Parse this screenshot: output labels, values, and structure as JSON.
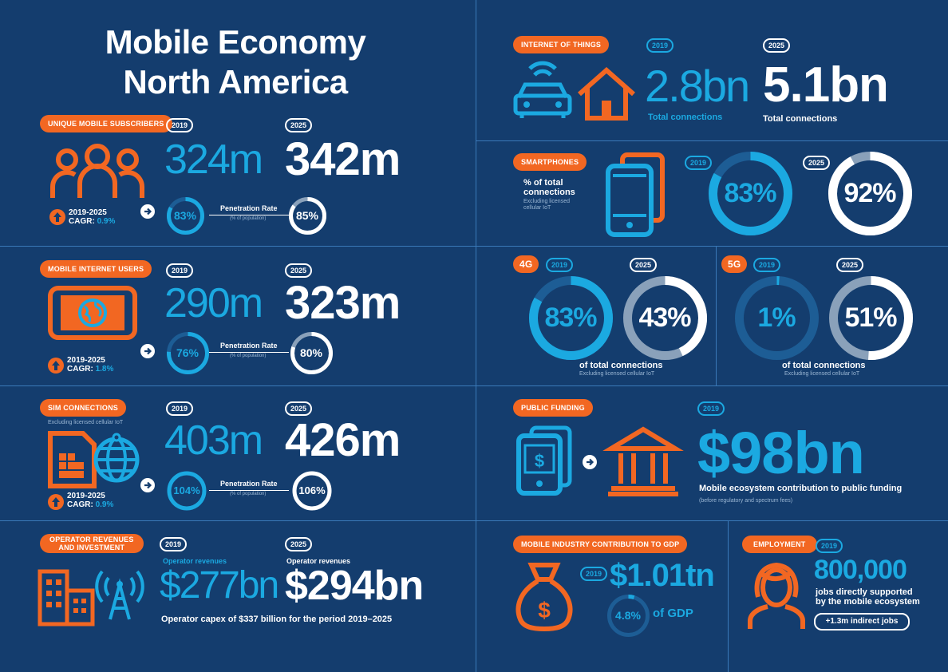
{
  "title": {
    "line1": "Mobile Economy",
    "line2": "North America"
  },
  "years": {
    "y2019": "2019",
    "y2025": "2025"
  },
  "subscribers": {
    "label": "UNIQUE MOBILE SUBSCRIBERS",
    "v2019": "324m",
    "v2025": "342m",
    "cagr_label": "2019-2025",
    "cagr_prefix": "CAGR: ",
    "cagr": "0.9%",
    "pen2019": "83%",
    "pen2025": "85%",
    "pen_value_2019": 83,
    "pen_value_2025": 85,
    "pen_label": "Penetration Rate",
    "pen_sub": "(% of population)"
  },
  "internet": {
    "label": "MOBILE INTERNET USERS",
    "v2019": "290m",
    "v2025": "323m",
    "cagr_label": "2019-2025",
    "cagr_prefix": "CAGR: ",
    "cagr": "1.8%",
    "pen2019": "76%",
    "pen2025": "80%",
    "pen_value_2019": 76,
    "pen_value_2025": 80,
    "pen_label": "Penetration Rate",
    "pen_sub": "(% of population)"
  },
  "sim": {
    "label": "SIM CONNECTIONS",
    "note": "Excluding licensed cellular IoT",
    "v2019": "403m",
    "v2025": "426m",
    "cagr_label": "2019-2025",
    "cagr_prefix": "CAGR: ",
    "cagr": "0.9%",
    "pen2019": "104%",
    "pen2025": "106%",
    "pen_label": "Penetration Rate",
    "pen_sub": "(% of population)"
  },
  "revenues": {
    "label_l1": "OPERATOR REVENUES",
    "label_l2": "AND INVESTMENT",
    "cap2019": "Operator revenues",
    "cap2025": "Operator revenues",
    "v2019": "$277bn",
    "v2025": "$294bn",
    "capex": "Operator capex of $337 billion for the period 2019–2025"
  },
  "iot": {
    "label": "INTERNET OF THINGS",
    "v2019": "2.8bn",
    "v2025": "5.1bn",
    "cap": "Total connections"
  },
  "smartphones": {
    "label": "SMARTPHONES",
    "desc_l1": "% of total",
    "desc_l2": "connections",
    "note_l1": "Excluding licensed",
    "note_l2": "cellular IoT",
    "v2019": "83%",
    "v2025": "92%",
    "value_2019": 83,
    "value_2025": 92
  },
  "g4": {
    "label": "4G",
    "v2019": "83%",
    "v2025": "43%",
    "value_2019": 83,
    "value_2025": 43,
    "cap": "of total connections",
    "note": "Excluding licensed cellular IoT"
  },
  "g5": {
    "label": "5G",
    "v2019": "1%",
    "v2025": "51%",
    "value_2019": 1,
    "value_2025": 51,
    "cap": "of total connections",
    "note": "Excluding licensed cellular IoT"
  },
  "funding": {
    "label": "PUBLIC FUNDING",
    "value": "$98bn",
    "cap": "Mobile ecosystem contribution to public funding",
    "note": "(before regulatory and spectrum fees)"
  },
  "gdp": {
    "label": "MOBILE INDUSTRY CONTRIBUTION TO GDP",
    "value": "$1.01tn",
    "pct": "4.8%",
    "pct_value": 4.8,
    "suffix": "of GDP"
  },
  "employment": {
    "label": "EMPLOYMENT",
    "value": "800,000",
    "cap_l1": "jobs directly supported",
    "cap_l2": "by the mobile ecosystem",
    "indirect": "+1.3m indirect jobs"
  },
  "colors": {
    "bg": "#143d6e",
    "orange": "#f26722",
    "blue": "#1ba9e1",
    "white": "#ffffff",
    "track": "#1d5d95",
    "grey": "#8aa1ba"
  }
}
